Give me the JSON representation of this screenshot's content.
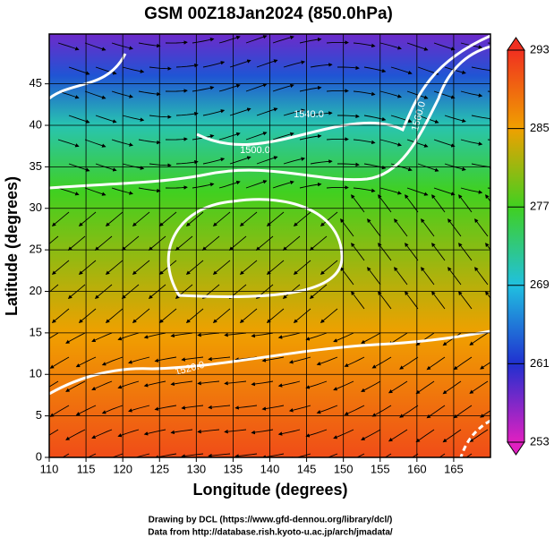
{
  "chart_data": {
    "type": "contour-map",
    "title": "GSM 00Z18Jan2024 (850.0hPa)",
    "x_label": "Longitude (degrees)",
    "y_label": "Latitude  (degrees)",
    "xlim": [
      110,
      170
    ],
    "ylim": [
      0,
      51
    ],
    "xticks": [
      110,
      115,
      120,
      125,
      130,
      135,
      140,
      145,
      150,
      155,
      160,
      165
    ],
    "yticks": [
      0,
      5,
      10,
      15,
      20,
      25,
      30,
      35,
      40,
      45
    ],
    "grid": true,
    "colorbar": {
      "lim": [
        253,
        293
      ],
      "ticks": [
        253,
        261,
        269,
        277,
        285,
        293
      ],
      "colors": [
        "#e020c0",
        "#2030d0",
        "#20c0e0",
        "#40d020",
        "#f0a000",
        "#f03020"
      ]
    },
    "annotations": [
      "1540.0",
      "1500.0",
      "1560.0",
      "1520.0"
    ],
    "footer": [
      "Drawing by DCL (https://www.gfd-dennou.org/library/dcl/)",
      "Data from http://database.rish.kyoto-u.ac.jp/arch/jmadata/"
    ]
  }
}
